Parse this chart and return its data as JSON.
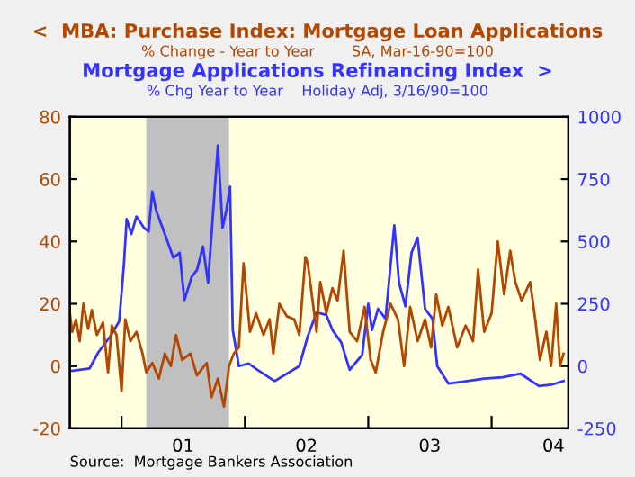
{
  "chart_data": {
    "type": "line",
    "title": null,
    "subtitle": "% Change - Year to Year        SA, Mar-16-90=100",
    "annotations": [
      "% Chg Year to Year    Holiday Adj, 3/16/90=100",
      "Source:  Mortgage Bankers Association"
    ],
    "series": [
      {
        "name": "<  MBA: Purchase Index: Mortgage Loan Applications",
        "color": "#b34700",
        "axis": "y",
        "x": [
          "2000-08-01",
          "2000-08-08",
          "2000-08-19",
          "2000-08-30",
          "2000-09-10",
          "2000-09-24",
          "2000-10-05",
          "2000-10-20",
          "2000-11-07",
          "2000-11-22",
          "2000-12-03",
          "2000-12-17",
          "2001-01-01",
          "2001-01-12",
          "2001-01-27",
          "2001-02-14",
          "2001-03-04",
          "2001-03-15",
          "2001-04-02",
          "2001-04-21",
          "2001-05-09",
          "2001-05-27",
          "2001-06-11",
          "2001-06-29",
          "2001-07-24",
          "2001-08-12",
          "2001-09-10",
          "2001-09-24",
          "2001-10-13",
          "2001-10-31",
          "2001-11-15",
          "2001-11-29",
          "2001-12-14",
          "2001-12-28",
          "2002-01-16",
          "2002-02-03",
          "2002-02-25",
          "2002-03-15",
          "2002-03-26",
          "2002-04-13",
          "2002-05-05",
          "2002-05-27",
          "2002-06-11",
          "2002-06-29",
          "2002-07-06",
          "2002-08-01",
          "2002-08-12",
          "2002-08-30",
          "2002-09-17",
          "2002-10-02",
          "2002-10-20",
          "2002-11-07",
          "2002-11-29",
          "2002-12-21",
          "2003-01-08",
          "2003-01-23",
          "2003-02-14",
          "2003-03-08",
          "2003-03-30",
          "2003-04-17",
          "2003-05-05",
          "2003-05-27",
          "2003-06-18",
          "2003-07-06",
          "2003-07-21",
          "2003-08-08",
          "2003-08-26",
          "2003-09-21",
          "2003-10-16",
          "2003-11-07",
          "2003-11-22",
          "2003-12-10",
          "2004-01-01",
          "2004-01-19",
          "2004-02-07",
          "2004-02-25",
          "2004-03-11",
          "2004-03-30",
          "2004-04-24",
          "2004-05-09",
          "2004-05-23",
          "2004-06-11",
          "2004-06-25",
          "2004-07-10",
          "2004-07-21",
          "2004-08-01"
        ],
        "values": [
          17,
          11,
          15,
          8,
          20,
          12,
          18,
          10,
          14,
          -2,
          13,
          10,
          -8,
          15,
          8,
          11,
          4,
          -2,
          1,
          -4,
          4,
          0,
          10,
          2,
          4,
          -3,
          1,
          -10,
          -4,
          -13,
          0,
          4,
          6,
          33,
          11,
          17,
          10,
          15,
          4,
          20,
          16,
          15,
          10,
          35,
          33,
          11,
          27,
          17,
          25,
          21,
          37,
          11,
          8,
          19,
          2,
          -2,
          11,
          20,
          15,
          0,
          19,
          8,
          15,
          6,
          23,
          13,
          19,
          6,
          13,
          8,
          31,
          11,
          17,
          40,
          23,
          37,
          27,
          21,
          27,
          15,
          2,
          11,
          0,
          20,
          0,
          4
        ]
      },
      {
        "name": "Mortgage Applications Refinancing Index  >",
        "color": "#3333ff",
        "axis": "y2",
        "x": [
          "2000-08-01",
          "2000-09-28",
          "2000-10-24",
          "2000-11-29",
          "2000-12-25",
          "2001-01-08",
          "2001-01-16",
          "2001-01-30",
          "2001-02-14",
          "2001-03-08",
          "2001-03-22",
          "2001-04-02",
          "2001-04-13",
          "2001-05-09",
          "2001-06-03",
          "2001-06-22",
          "2001-07-06",
          "2001-07-28",
          "2001-08-12",
          "2001-08-30",
          "2001-09-14",
          "2001-10-13",
          "2001-10-27",
          "2001-11-07",
          "2001-11-18",
          "2001-11-26",
          "2001-12-14",
          "2002-01-12",
          "2002-02-07",
          "2002-03-30",
          "2002-06-11",
          "2002-07-06",
          "2002-08-01",
          "2002-08-30",
          "2002-09-17",
          "2002-10-13",
          "2002-11-07",
          "2002-12-14",
          "2003-01-01",
          "2003-01-12",
          "2003-01-30",
          "2003-02-21",
          "2003-03-19",
          "2003-04-02",
          "2003-04-21",
          "2003-05-09",
          "2003-05-27",
          "2003-06-18",
          "2003-07-10",
          "2003-07-24",
          "2003-08-26",
          "2003-10-20",
          "2003-12-10",
          "2004-02-03",
          "2004-03-26",
          "2004-05-20",
          "2004-06-25",
          "2004-08-01"
        ],
        "values": [
          -20,
          -10,
          55,
          120,
          180,
          410,
          590,
          530,
          600,
          555,
          540,
          700,
          625,
          530,
          435,
          455,
          265,
          360,
          385,
          480,
          335,
          885,
          555,
          625,
          720,
          145,
          0,
          10,
          -15,
          -60,
          0,
          120,
          215,
          205,
          145,
          95,
          -15,
          45,
          250,
          145,
          230,
          190,
          565,
          335,
          240,
          455,
          515,
          230,
          190,
          0,
          -70,
          -60,
          -50,
          -45,
          -30,
          -80,
          -75,
          -60
        ]
      }
    ],
    "xlim": [
      "2000-08-01",
      "2004-08-15"
    ],
    "xticks": [
      {
        "value": "2001-01-01",
        "label": null
      },
      {
        "value": "2001-07-02",
        "label": "01"
      },
      {
        "value": "2002-01-01",
        "label": null
      },
      {
        "value": "2002-07-02",
        "label": "02"
      },
      {
        "value": "2003-01-01",
        "label": null
      },
      {
        "value": "2003-07-02",
        "label": "03"
      },
      {
        "value": "2004-01-01",
        "label": null
      },
      {
        "value": "2004-07-02",
        "label": "04"
      }
    ],
    "ylim": [
      -20,
      80
    ],
    "yticks": [
      -20,
      0,
      20,
      40,
      60,
      80
    ],
    "y2lim": [
      -250,
      1000
    ],
    "y2ticks": [
      -250,
      0,
      250,
      500,
      750,
      1000
    ],
    "bands": [
      {
        "axis": "x",
        "from": "2001-03-15",
        "to": "2001-11-15",
        "color": "#c0c0c0"
      }
    ],
    "grid": false,
    "legend": false
  }
}
